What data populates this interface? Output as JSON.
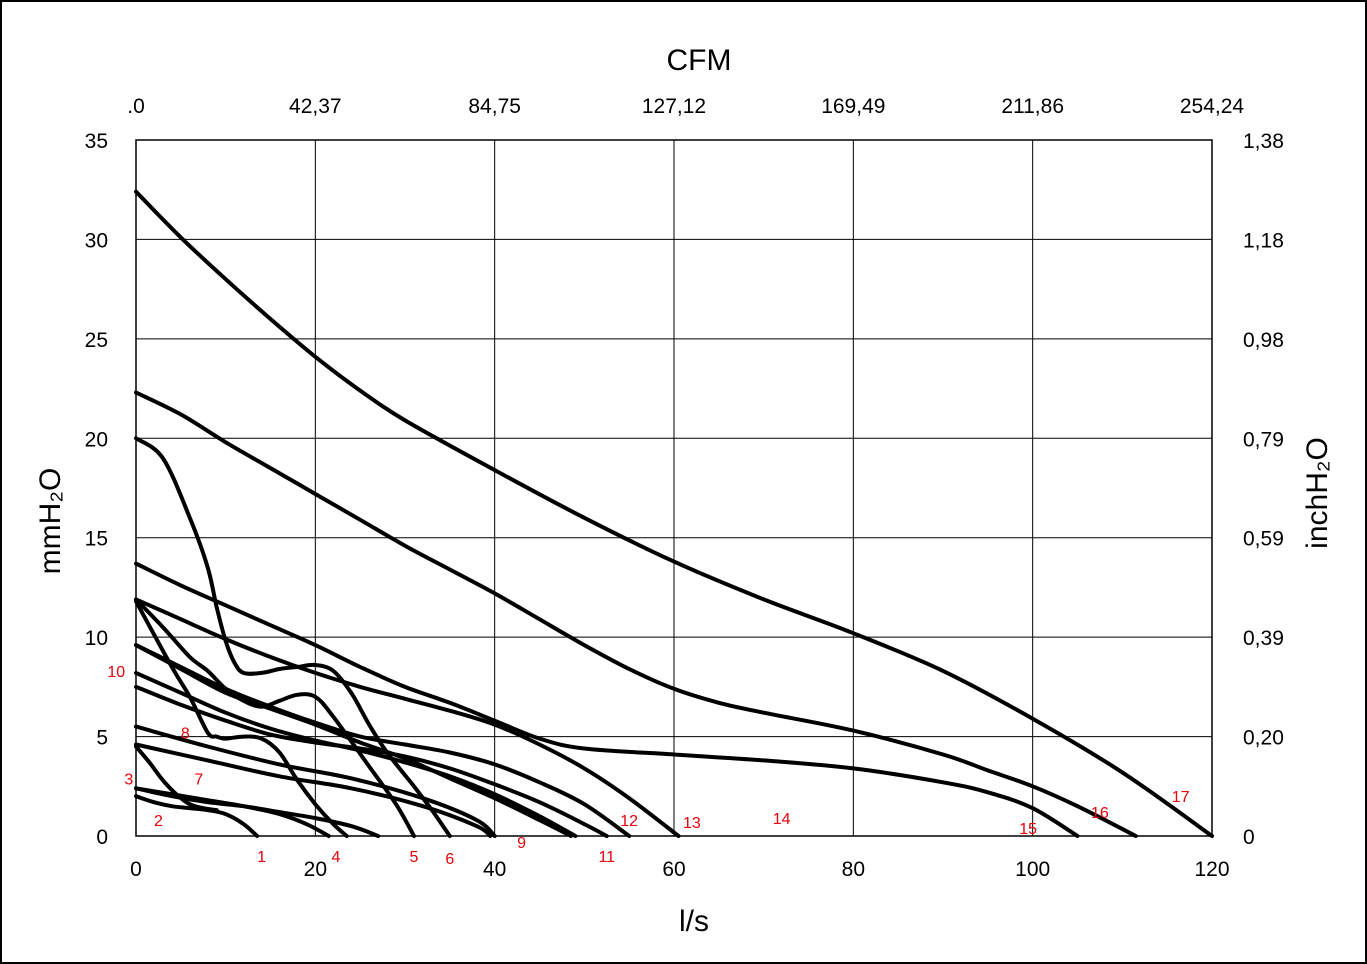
{
  "chart_data": {
    "type": "line",
    "title": "",
    "xlabel": "l/s",
    "ylabel": "mmH₂O",
    "x2label": "CFM",
    "y2label": "inchH₂O",
    "xlim": [
      0,
      120
    ],
    "ylim": [
      0,
      35
    ],
    "grid": true,
    "x_ticks": [
      "0",
      "20",
      "40",
      "60",
      "80",
      "100",
      "120"
    ],
    "y_ticks": [
      "0",
      "5",
      "10",
      "15",
      "20",
      "25",
      "30",
      "35"
    ],
    "x2_ticks": [
      ".0",
      "42,37",
      "84,75",
      "127,12",
      "169,49",
      "211,86",
      "254,24"
    ],
    "y2_ticks": [
      "0",
      "0,20",
      "0,39",
      "0,59",
      "0,79",
      "0,98",
      "1,18",
      "1,38"
    ],
    "line_color": "#000000",
    "label_color": "#e8000b",
    "series": [
      {
        "name": "1",
        "label_at": [
          14,
          -1.0
        ],
        "x": [
          0,
          2,
          4,
          6,
          8,
          10,
          12,
          13.5
        ],
        "y": [
          2.0,
          1.7,
          1.5,
          1.4,
          1.3,
          1.1,
          0.6,
          0
        ]
      },
      {
        "name": "2",
        "label_at": [
          2.5,
          0.8
        ],
        "x": [
          0,
          4,
          8,
          12,
          16,
          19,
          21.5
        ],
        "y": [
          2.4,
          2.1,
          1.8,
          1.5,
          1.1,
          0.6,
          0
        ]
      },
      {
        "name": "3",
        "label_at": [
          -0.8,
          2.9
        ],
        "x": [
          0,
          1.5,
          3,
          4.5,
          6,
          7.5,
          9
        ],
        "y": [
          4.5,
          3.7,
          2.8,
          2.1,
          1.6,
          1.4,
          1.3
        ]
      },
      {
        "name": "4",
        "label_at": [
          22.3,
          -1.0
        ],
        "x": [
          0,
          4,
          8,
          12,
          16,
          20,
          24,
          27
        ],
        "y": [
          2.4,
          2.0,
          1.7,
          1.5,
          1.2,
          0.9,
          0.5,
          0
        ]
      },
      {
        "name": "5",
        "label_at": [
          31,
          -1.0
        ],
        "x": [
          0,
          3,
          6,
          8,
          10,
          12,
          14,
          16,
          18,
          20,
          22,
          26,
          29,
          31
        ],
        "y": [
          11.9,
          10.5,
          9.0,
          8.3,
          7.4,
          6.8,
          6.5,
          6.8,
          7.1,
          7.0,
          6.0,
          3.5,
          1.6,
          0
        ]
      },
      {
        "name": "6",
        "label_at": [
          35,
          -1.1
        ],
        "x": [
          0,
          3,
          6,
          8,
          9,
          10,
          11,
          12,
          14,
          16,
          18,
          20,
          22,
          24,
          26,
          28,
          31,
          33,
          35
        ],
        "y": [
          20.0,
          19.0,
          16.0,
          13.5,
          11.5,
          9.8,
          8.7,
          8.2,
          8.2,
          8.4,
          8.5,
          8.6,
          8.3,
          7.2,
          5.6,
          4.2,
          2.5,
          1.3,
          0
        ]
      },
      {
        "name": "7",
        "label_at": [
          7,
          2.9
        ],
        "x": [
          0,
          8,
          16,
          24,
          32,
          38,
          39.5
        ],
        "y": [
          4.6,
          3.8,
          3.0,
          2.4,
          1.5,
          0.5,
          0
        ]
      },
      {
        "name": "8",
        "label_at": [
          5.5,
          5.2
        ],
        "x": [
          0,
          8,
          16,
          24,
          32,
          38,
          40
        ],
        "y": [
          5.5,
          4.5,
          3.6,
          2.9,
          1.9,
          0.8,
          0
        ]
      },
      {
        "name": "9",
        "label_at": [
          43,
          -0.3
        ],
        "x": [
          0,
          4,
          6,
          8,
          9,
          10,
          12,
          14,
          16,
          18,
          20,
          22,
          23.5
        ],
        "y": [
          11.8,
          8.5,
          7.0,
          5.2,
          5.0,
          4.9,
          5.0,
          4.9,
          4.2,
          2.8,
          1.6,
          0.6,
          0
        ]
      },
      {
        "name": "10",
        "label_at": [
          -2.2,
          8.3
        ],
        "x": [
          0,
          5,
          10,
          15,
          20,
          25,
          30,
          35,
          40,
          45,
          48.5
        ],
        "y": [
          9.6,
          8.4,
          7.2,
          6.4,
          5.6,
          4.7,
          3.9,
          2.9,
          1.9,
          0.8,
          0
        ]
      },
      {
        "name": "11",
        "label_at": [
          52.5,
          -1.0
        ],
        "x": [
          0,
          5,
          10,
          15,
          20,
          25,
          30,
          35,
          40,
          45,
          49
        ],
        "y": [
          8.2,
          7.2,
          6.2,
          5.4,
          4.8,
          4.3,
          3.7,
          3.0,
          2.1,
          1.0,
          0
        ]
      },
      {
        "name": "12",
        "label_at": [
          55,
          0.8
        ],
        "x": [
          0,
          5,
          10,
          15,
          20,
          25,
          30,
          35,
          40,
          45,
          50,
          52.5
        ],
        "y": [
          7.5,
          6.6,
          5.8,
          5.1,
          4.7,
          4.4,
          4.0,
          3.4,
          2.6,
          1.7,
          0.6,
          0
        ]
      },
      {
        "name": "13",
        "label_at": [
          62,
          0.7
        ],
        "x": [
          0,
          5,
          10,
          15,
          20,
          25,
          30,
          35,
          40,
          45,
          50,
          55
        ],
        "y": [
          9.6,
          8.5,
          7.4,
          6.5,
          5.7,
          5.0,
          4.6,
          4.2,
          3.6,
          2.7,
          1.6,
          0
        ]
      },
      {
        "name": "14",
        "label_at": [
          72,
          0.9
        ],
        "x": [
          0,
          5,
          10,
          15,
          20,
          25,
          30,
          35,
          40,
          45,
          50,
          55,
          60.5
        ],
        "y": [
          11.9,
          10.9,
          9.9,
          9.0,
          8.2,
          7.5,
          6.9,
          6.3,
          5.6,
          4.6,
          3.4,
          1.9,
          0
        ]
      },
      {
        "name": "15",
        "label_at": [
          99.5,
          0.4
        ],
        "x": [
          0,
          5,
          10,
          15,
          20,
          25,
          30,
          35,
          40,
          45,
          50,
          60,
          70,
          80,
          90,
          95,
          100,
          105
        ],
        "y": [
          13.7,
          12.6,
          11.6,
          10.6,
          9.6,
          8.5,
          7.5,
          6.7,
          5.8,
          4.9,
          4.4,
          4.1,
          3.8,
          3.4,
          2.7,
          2.2,
          1.4,
          0
        ]
      },
      {
        "name": "16",
        "label_at": [
          107.5,
          1.2
        ],
        "x": [
          0,
          5,
          10,
          15,
          20,
          25,
          30,
          35,
          40,
          45,
          50,
          55,
          60,
          65,
          70,
          80,
          90,
          95,
          100,
          105,
          111.5
        ],
        "y": [
          22.3,
          21.2,
          19.8,
          18.5,
          17.2,
          15.9,
          14.6,
          13.4,
          12.2,
          10.9,
          9.6,
          8.4,
          7.4,
          6.7,
          6.2,
          5.3,
          4.1,
          3.3,
          2.5,
          1.5,
          0
        ]
      },
      {
        "name": "17",
        "label_at": [
          116.5,
          2.0
        ],
        "x": [
          0,
          5,
          10,
          15,
          20,
          25,
          30,
          40,
          50,
          60,
          70,
          80,
          90,
          100,
          110,
          120
        ],
        "y": [
          32.4,
          30.1,
          28.0,
          26.0,
          24.1,
          22.4,
          20.9,
          18.4,
          16.0,
          13.8,
          11.9,
          10.2,
          8.3,
          5.9,
          3.2,
          0
        ]
      }
    ]
  }
}
